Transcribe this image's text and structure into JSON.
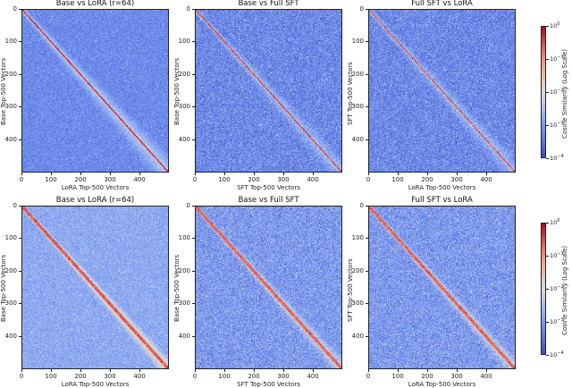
{
  "figure": {
    "rows": [
      {
        "panels": [
          {
            "title": "Base vs LoRA (r=64)",
            "xlabel": "LoRA Top-500 Vectors",
            "ylabel": "Base Top-500 Vectors"
          },
          {
            "title": "Base vs Full SFT",
            "xlabel": "SFT Top-500 Vectors",
            "ylabel": "Base Top-500 Vectors"
          },
          {
            "title": "Full SFT vs LoRA",
            "xlabel": "LoRA Top-500 Vectors",
            "ylabel": "SFT Top-500 Vectors"
          }
        ],
        "colorbar": {
          "label": "Cosine Similarity (Log Scale)",
          "ticks": [
            {
              "base": "10",
              "exp": "0"
            },
            {
              "base": "10",
              "exp": "−1"
            },
            {
              "base": "10",
              "exp": "−2"
            },
            {
              "base": "10",
              "exp": "−3"
            },
            {
              "base": "10",
              "exp": "−4"
            }
          ]
        }
      },
      {
        "panels": [
          {
            "title": "Base vs LoRA (r=64)",
            "xlabel": "LoRA Top-500 Vectors",
            "ylabel": "Base Top-500 Vectors"
          },
          {
            "title": "Base vs Full SFT",
            "xlabel": "SFT Top-500 Vectors",
            "ylabel": "Base Top-500 Vectors"
          },
          {
            "title": "Full SFT vs LoRA",
            "xlabel": "LoRA Top-500 Vectors",
            "ylabel": "SFT Top-500 Vectors"
          }
        ],
        "colorbar": {
          "label": "Cosine Similarity (Log Scale)",
          "ticks": [
            {
              "base": "10",
              "exp": "0"
            },
            {
              "base": "10",
              "exp": "−1"
            },
            {
              "base": "10",
              "exp": "−2"
            },
            {
              "base": "10",
              "exp": "−3"
            },
            {
              "base": "10",
              "exp": "−4"
            }
          ]
        }
      }
    ],
    "xticks": [
      "0",
      "100",
      "200",
      "300",
      "400"
    ],
    "yticks": [
      "0",
      "100",
      "200",
      "300",
      "400"
    ]
  },
  "chart_data": [
    {
      "type": "heatmap",
      "title": "Base vs LoRA (r=64)",
      "row": 1,
      "xlabel": "LoRA Top-500 Vectors",
      "ylabel": "Base Top-500 Vectors",
      "xlim": [
        0,
        500
      ],
      "ylim": [
        500,
        0
      ],
      "xticks": [
        0,
        100,
        200,
        300,
        400
      ],
      "yticks": [
        0,
        100,
        200,
        300,
        400
      ],
      "colorscale": "coolwarm",
      "scale": "log",
      "vmin": 0.0001,
      "vmax": 1,
      "pattern": "strong thin diagonal (~1e-1 to 1e0), smooth light band widening toward bottom-right, background ~1e-3.5",
      "params": {
        "bg": -3.4,
        "noise": 0.35,
        "diag": -0.3,
        "diagWidth": 1.2,
        "band": -2.3,
        "bandWidth": 22,
        "seed": 11
      }
    },
    {
      "type": "heatmap",
      "title": "Base vs Full SFT",
      "row": 1,
      "xlabel": "SFT Top-500 Vectors",
      "ylabel": "Base Top-500 Vectors",
      "xlim": [
        0,
        500
      ],
      "ylim": [
        500,
        0
      ],
      "xticks": [
        0,
        100,
        200,
        300,
        400
      ],
      "yticks": [
        0,
        100,
        200,
        300,
        400
      ],
      "colorscale": "coolwarm",
      "scale": "log",
      "vmin": 0.0001,
      "vmax": 1,
      "pattern": "thin diagonal, grainy noisy background ~1e-3.5",
      "params": {
        "bg": -3.5,
        "noise": 0.55,
        "diag": -0.5,
        "diagWidth": 1.0,
        "band": -2.5,
        "bandWidth": 18,
        "seed": 23
      }
    },
    {
      "type": "heatmap",
      "title": "Full SFT vs LoRA",
      "row": 1,
      "xlabel": "LoRA Top-500 Vectors",
      "ylabel": "SFT Top-500 Vectors",
      "xlim": [
        0,
        500
      ],
      "ylim": [
        500,
        0
      ],
      "xticks": [
        0,
        100,
        200,
        300,
        400
      ],
      "yticks": [
        0,
        100,
        200,
        300,
        400
      ],
      "colorscale": "coolwarm",
      "scale": "log",
      "vmin": 0.0001,
      "vmax": 1,
      "pattern": "thin diagonal, grainy noisy background ~1e-3.5",
      "params": {
        "bg": -3.5,
        "noise": 0.55,
        "diag": -0.6,
        "diagWidth": 1.0,
        "band": -2.5,
        "bandWidth": 18,
        "seed": 37
      }
    },
    {
      "type": "heatmap",
      "title": "Base vs LoRA (r=64)",
      "row": 2,
      "xlabel": "LoRA Top-500 Vectors",
      "ylabel": "Base Top-500 Vectors",
      "xlim": [
        0,
        500
      ],
      "ylim": [
        500,
        0
      ],
      "xticks": [
        0,
        100,
        200,
        300,
        400
      ],
      "yticks": [
        0,
        100,
        200,
        300,
        400
      ],
      "colorscale": "coolwarm",
      "scale": "log",
      "vmin": 0.0001,
      "vmax": 1,
      "pattern": "wide reddish diagonal band, lighter background ~1e-2.8",
      "params": {
        "bg": -3.0,
        "noise": 0.4,
        "diag": -0.6,
        "diagWidth": 3.5,
        "band": -1.5,
        "bandWidth": 14,
        "seed": 51
      }
    },
    {
      "type": "heatmap",
      "title": "Base vs Full SFT",
      "row": 2,
      "xlabel": "SFT Top-500 Vectors",
      "ylabel": "Base Top-500 Vectors",
      "xlim": [
        0,
        500
      ],
      "ylim": [
        500,
        0
      ],
      "xticks": [
        0,
        100,
        200,
        300,
        400
      ],
      "yticks": [
        0,
        100,
        200,
        300,
        400
      ],
      "colorscale": "coolwarm",
      "scale": "log",
      "vmin": 0.0001,
      "vmax": 1,
      "pattern": "noisy diagonal band with scattered red, grainy background",
      "params": {
        "bg": -3.3,
        "noise": 0.6,
        "diag": -0.7,
        "diagWidth": 3.0,
        "band": -1.9,
        "bandWidth": 14,
        "seed": 67
      }
    },
    {
      "type": "heatmap",
      "title": "Full SFT vs LoRA",
      "row": 2,
      "xlabel": "LoRA Top-500 Vectors",
      "ylabel": "SFT Top-500 Vectors",
      "xlim": [
        0,
        500
      ],
      "ylim": [
        500,
        0
      ],
      "xticks": [
        0,
        100,
        200,
        300,
        400
      ],
      "yticks": [
        0,
        100,
        200,
        300,
        400
      ],
      "colorscale": "coolwarm",
      "scale": "log",
      "vmin": 0.0001,
      "vmax": 1,
      "pattern": "noisy diagonal band with scattered red, grainy background",
      "params": {
        "bg": -3.3,
        "noise": 0.6,
        "diag": -0.7,
        "diagWidth": 3.0,
        "band": -1.9,
        "bandWidth": 14,
        "seed": 79
      }
    }
  ]
}
